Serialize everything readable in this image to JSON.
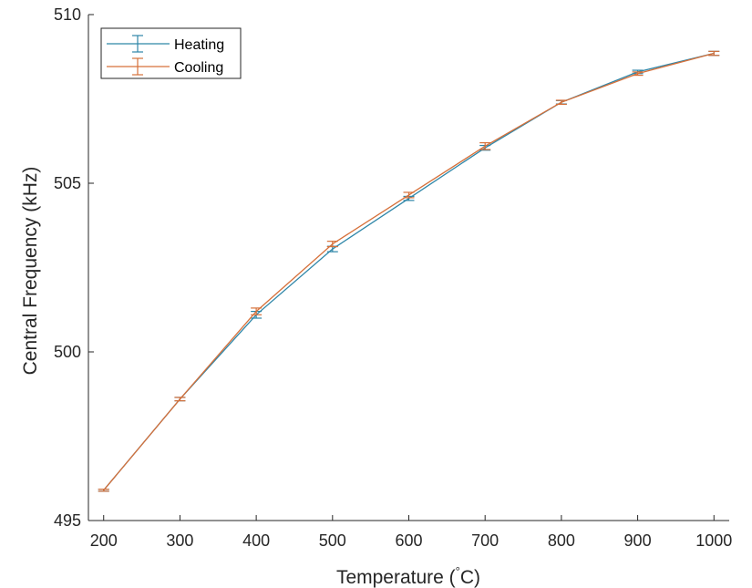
{
  "chart_data": {
    "type": "line",
    "xlabel": "Temperature (°C)",
    "xlabel_main": "Temperature (",
    "xlabel_degree": "°",
    "xlabel_unit": "C)",
    "ylabel": "Central Frequency (kHz)",
    "xlim": [
      180,
      1020
    ],
    "ylim": [
      495,
      510
    ],
    "xticks": [
      200,
      300,
      400,
      500,
      600,
      700,
      800,
      900,
      1000
    ],
    "yticks": [
      495,
      500,
      505,
      510
    ],
    "grid": false,
    "legend_position": "top-left",
    "x": [
      200,
      300,
      400,
      500,
      600,
      700,
      800,
      900,
      1000
    ],
    "series": [
      {
        "name": "Heating",
        "color": "#2e86a8",
        "values": [
          495.9,
          498.6,
          501.1,
          503.05,
          504.55,
          506.05,
          507.4,
          508.3,
          508.85
        ],
        "errors": [
          0.03,
          0.05,
          0.1,
          0.08,
          0.06,
          0.07,
          0.05,
          0.05,
          0.06
        ]
      },
      {
        "name": "Cooling",
        "color": "#d6703a",
        "values": [
          495.9,
          498.6,
          501.2,
          503.2,
          504.65,
          506.1,
          507.4,
          508.25,
          508.85
        ],
        "errors": [
          0.03,
          0.05,
          0.1,
          0.08,
          0.08,
          0.1,
          0.06,
          0.05,
          0.06
        ]
      }
    ]
  }
}
